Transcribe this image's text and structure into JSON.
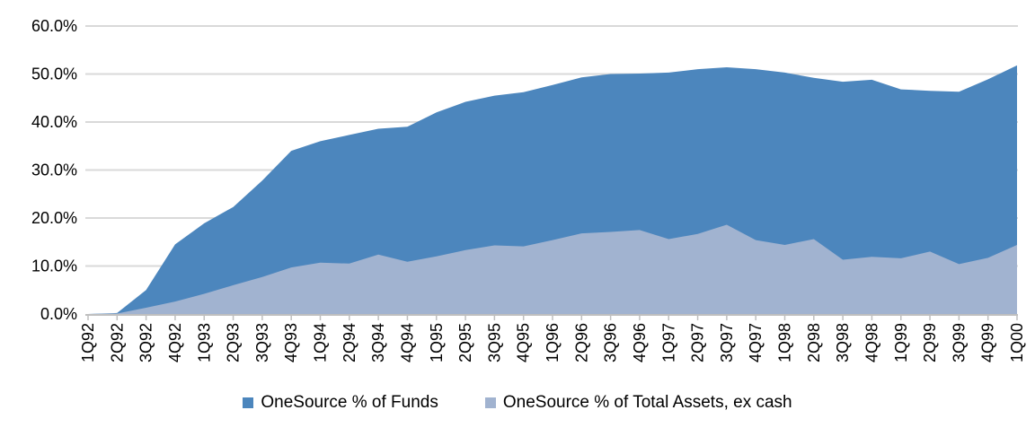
{
  "chart_data": {
    "type": "area",
    "overlapping": true,
    "title": "",
    "xlabel": "",
    "ylabel": "",
    "ylim": [
      0,
      60
    ],
    "ytick_step": 10,
    "ytick_labels": [
      "0.0%",
      "10.0%",
      "20.0%",
      "30.0%",
      "40.0%",
      "50.0%",
      "60.0%"
    ],
    "grid": "horizontal",
    "legend_position": "bottom-center",
    "categories": [
      "1Q92",
      "2Q92",
      "3Q92",
      "4Q92",
      "1Q93",
      "2Q93",
      "3Q93",
      "4Q93",
      "1Q94",
      "2Q94",
      "3Q94",
      "4Q94",
      "1Q95",
      "2Q95",
      "3Q95",
      "4Q95",
      "1Q96",
      "2Q96",
      "3Q96",
      "4Q96",
      "1Q97",
      "2Q97",
      "3Q97",
      "4Q97",
      "1Q98",
      "2Q98",
      "3Q98",
      "4Q98",
      "1Q99",
      "2Q99",
      "3Q99",
      "4Q99",
      "1Q00"
    ],
    "series": [
      {
        "name": "OneSource % of Funds",
        "color": "#4c86bd",
        "values": [
          0.0,
          0.2,
          5.0,
          14.5,
          18.9,
          22.3,
          27.8,
          34.0,
          36.0,
          37.3,
          38.6,
          39.0,
          42.0,
          44.2,
          45.5,
          46.2,
          47.7,
          49.3,
          50.0,
          50.1,
          50.3,
          51.0,
          51.4,
          51.0,
          50.3,
          49.2,
          48.4,
          48.8,
          46.8,
          46.5,
          46.3,
          48.9,
          51.8
        ]
      },
      {
        "name": "OneSource % of Total Assets, ex cash",
        "color": "#a1b3d0",
        "values": [
          0.0,
          0.1,
          1.3,
          2.6,
          4.2,
          6.0,
          7.7,
          9.7,
          10.7,
          10.5,
          12.4,
          10.9,
          12.0,
          13.3,
          14.3,
          14.1,
          15.4,
          16.8,
          17.1,
          17.5,
          15.6,
          16.7,
          18.6,
          15.4,
          14.4,
          15.6,
          11.3,
          11.9,
          11.6,
          13.0,
          10.4,
          11.7,
          14.4
        ]
      }
    ],
    "style": {
      "gridline_color": "#d9d9d9",
      "axis_color": "#bfbfbf",
      "text_color": "#000000",
      "background_color": "#ffffff"
    }
  }
}
